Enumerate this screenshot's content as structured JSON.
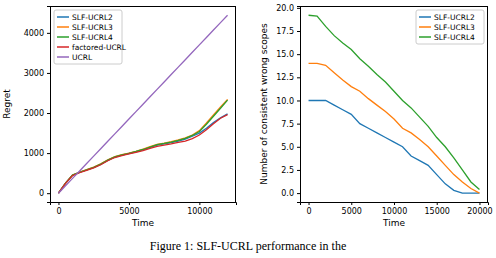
{
  "chart_data": [
    {
      "type": "line",
      "x_label": "Time",
      "y_label": "Regret",
      "x": [
        0,
        500,
        1000,
        1500,
        2000,
        2500,
        3000,
        3500,
        4000,
        4500,
        5000,
        5500,
        6000,
        6500,
        7000,
        7500,
        8000,
        8500,
        9000,
        9500,
        10000,
        10500,
        11000,
        11500,
        12000
      ],
      "xlim": [
        -600,
        12600
      ],
      "xticks": [
        0,
        5000,
        10000
      ],
      "ylim": [
        -220,
        4670
      ],
      "yticks": [
        0,
        1000,
        2000,
        3000,
        4000
      ],
      "legend": "upper left",
      "grid": false,
      "series": [
        {
          "name": "SLF-UCRL2",
          "color": "#1f77b4",
          "values": [
            0,
            250,
            450,
            520,
            580,
            640,
            720,
            820,
            900,
            950,
            990,
            1030,
            1080,
            1140,
            1200,
            1230,
            1260,
            1300,
            1350,
            1420,
            1500,
            1620,
            1760,
            1880,
            1980
          ]
        },
        {
          "name": "SLF-UCRL3",
          "color": "#ff7f0e",
          "values": [
            0,
            250,
            455,
            525,
            585,
            650,
            730,
            830,
            910,
            960,
            1000,
            1045,
            1100,
            1160,
            1220,
            1250,
            1285,
            1330,
            1380,
            1450,
            1560,
            1750,
            1950,
            2150,
            2340
          ]
        },
        {
          "name": "SLF-UCRL4",
          "color": "#2ca02c",
          "values": [
            0,
            248,
            452,
            522,
            582,
            645,
            725,
            825,
            905,
            955,
            995,
            1040,
            1090,
            1150,
            1210,
            1240,
            1275,
            1320,
            1370,
            1440,
            1540,
            1720,
            1920,
            2120,
            2320
          ]
        },
        {
          "name": "factored-UCRL",
          "color": "#d62728",
          "values": [
            0,
            245,
            440,
            510,
            570,
            630,
            710,
            810,
            890,
            940,
            980,
            1020,
            1060,
            1120,
            1170,
            1200,
            1230,
            1265,
            1300,
            1360,
            1450,
            1580,
            1730,
            1870,
            1960
          ]
        },
        {
          "name": "UCRL",
          "color": "#9467bd",
          "values": [
            0,
            185,
            370,
            555,
            740,
            925,
            1110,
            1295,
            1480,
            1665,
            1850,
            2035,
            2220,
            2405,
            2590,
            2775,
            2960,
            3145,
            3330,
            3515,
            3700,
            3885,
            4070,
            4255,
            4440
          ]
        }
      ]
    },
    {
      "type": "line",
      "x_label": "Time",
      "y_label": "Number of consistent wrong scopes",
      "x": [
        0,
        1000,
        2000,
        3000,
        4000,
        5000,
        6000,
        7000,
        8000,
        9000,
        10000,
        11000,
        12000,
        13000,
        14000,
        15000,
        16000,
        17000,
        18000,
        19000,
        20000
      ],
      "xlim": [
        -1000,
        21000
      ],
      "xticks": [
        0,
        5000,
        10000,
        15000,
        20000
      ],
      "ylim": [
        -0.96,
        20.2
      ],
      "yticks": [
        {
          "value": 0,
          "label": "0.0"
        },
        2.5,
        {
          "value": 5,
          "label": "5.0"
        },
        7.5,
        {
          "value": 10,
          "label": "10.0"
        },
        12.5,
        {
          "value": 15,
          "label": "15.0"
        },
        17.5,
        {
          "value": 20,
          "label": "20.0"
        }
      ],
      "legend": "upper right",
      "grid": false,
      "series": [
        {
          "name": "SLF-UCRL2",
          "color": "#1f77b4",
          "values": [
            10,
            10,
            10,
            9.5,
            9,
            8.5,
            7.5,
            7,
            6.5,
            6,
            5.5,
            5,
            4,
            3.5,
            3,
            2,
            1,
            0.3,
            0,
            0,
            0
          ]
        },
        {
          "name": "SLF-UCRL3",
          "color": "#ff7f0e",
          "values": [
            14,
            14,
            13.8,
            13,
            12.2,
            11.5,
            11,
            10.2,
            9.5,
            8.8,
            8,
            7,
            6.5,
            5.8,
            5,
            4,
            3,
            2,
            1.2,
            0.5,
            0
          ]
        },
        {
          "name": "SLF-UCRL4",
          "color": "#2ca02c",
          "values": [
            19.2,
            19.1,
            18,
            17,
            16.2,
            15.5,
            14.5,
            13.7,
            12.8,
            12,
            11,
            10,
            9.2,
            8.2,
            7.2,
            6,
            5,
            3.8,
            2.5,
            1.2,
            0.4
          ]
        }
      ]
    }
  ],
  "caption": "Figure 1: SLF-UCRL performance in the"
}
